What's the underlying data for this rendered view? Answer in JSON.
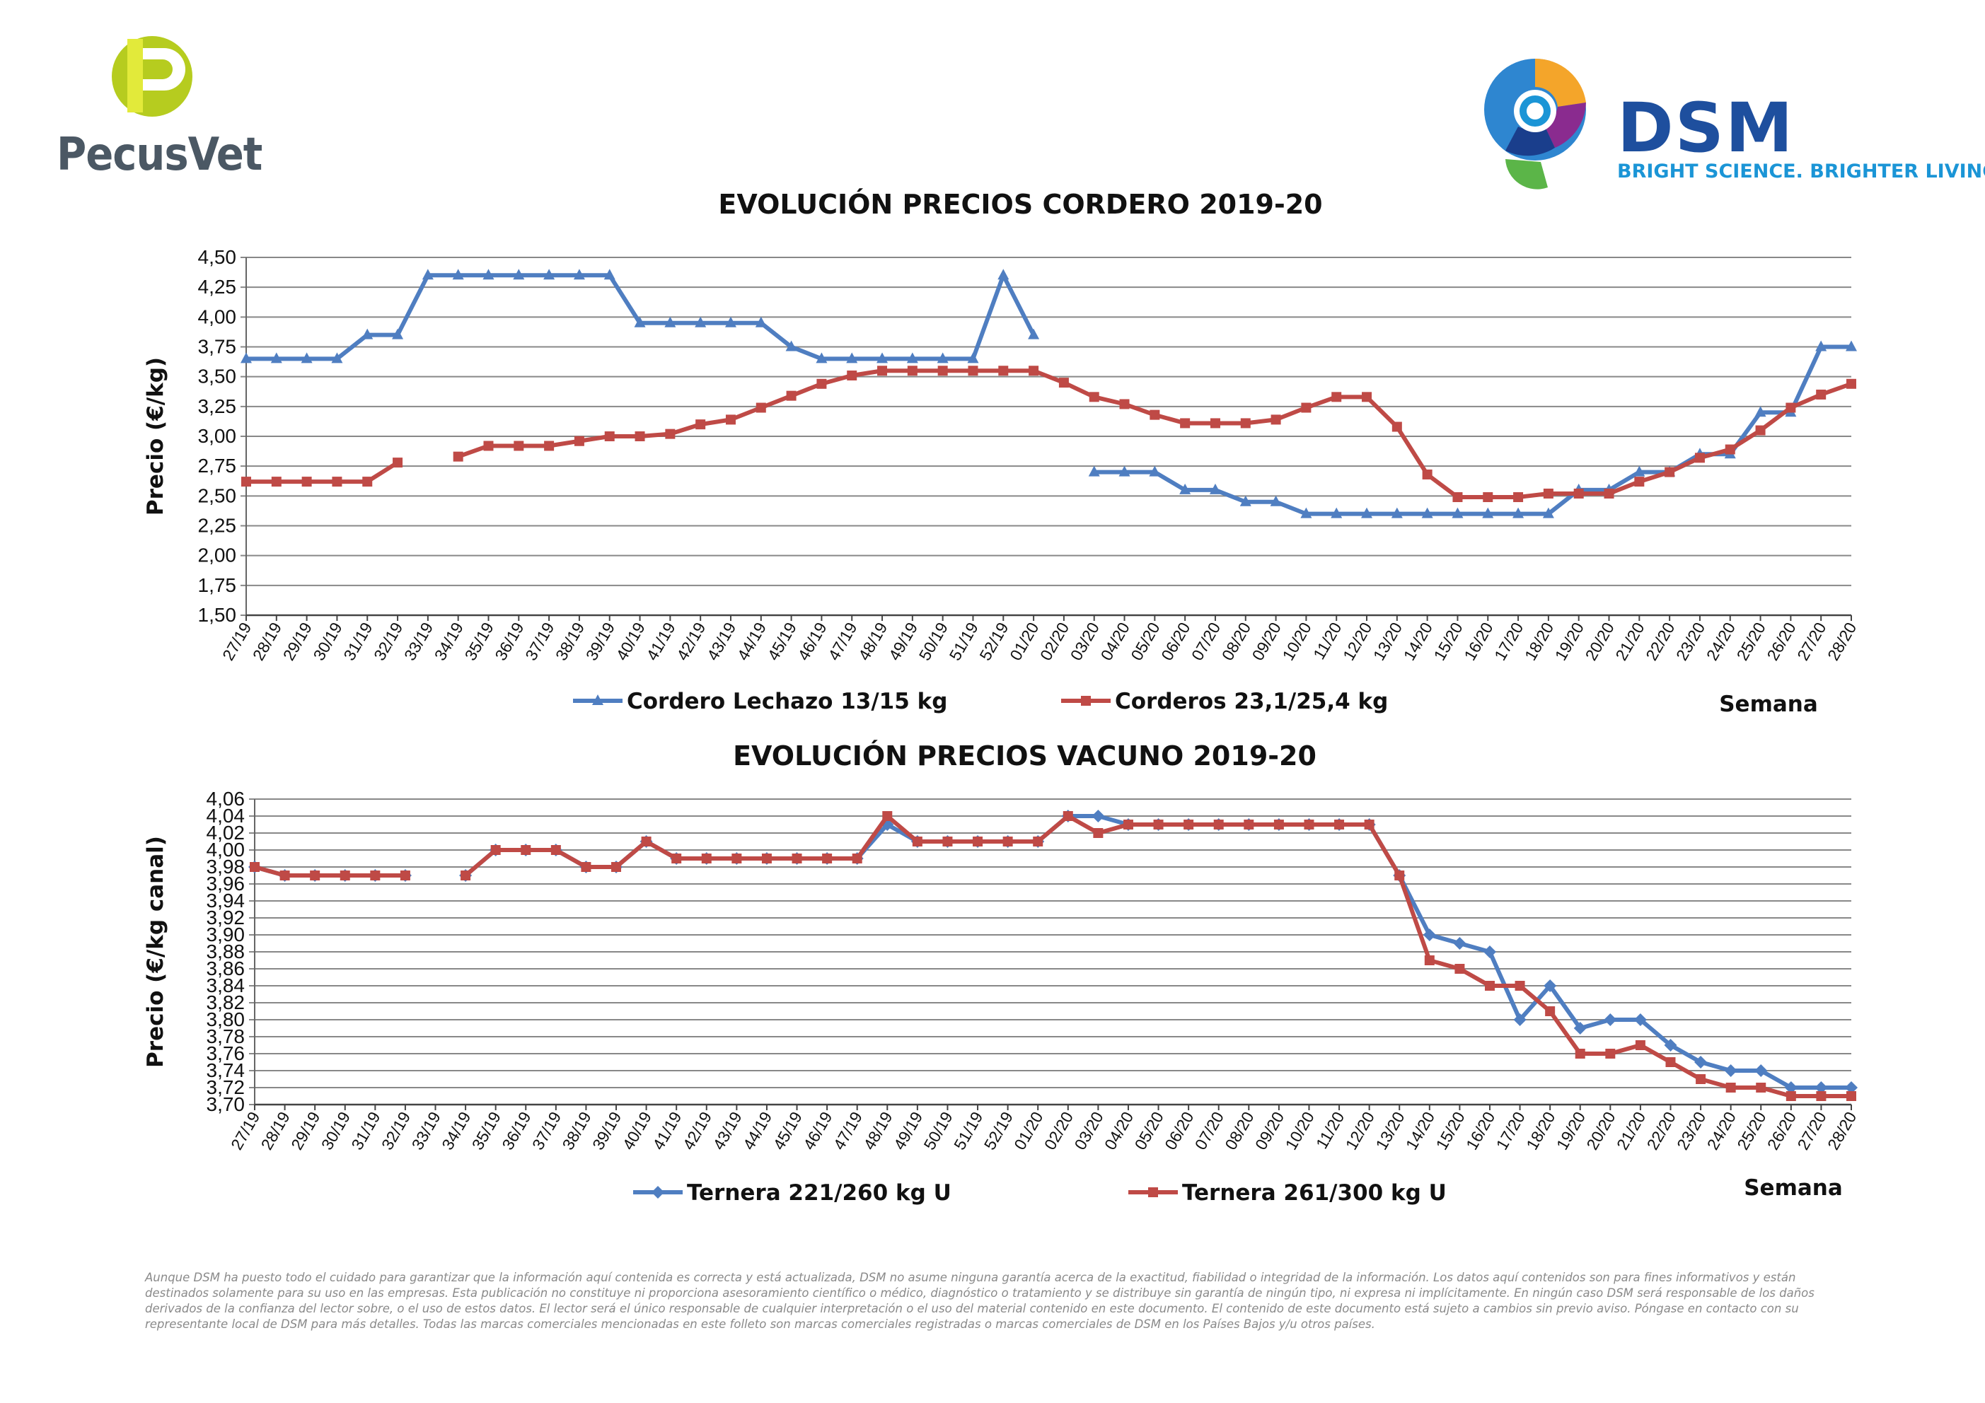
{
  "logos": {
    "pecusvet": "PecusVet",
    "dsm": "DSM",
    "dsm_tagline": "BRIGHT SCIENCE. BRIGHTER LIVING."
  },
  "colors": {
    "blue": "#4f7ec1",
    "red": "#bf4a46",
    "grid": "#888888"
  },
  "chart_data": [
    {
      "type": "line",
      "title": "EVOLUCIÓN PRECIOS CORDERO 2019-20",
      "ylabel": "Precio (€/kg)",
      "xlabel": "Semana",
      "ylim": [
        1.5,
        4.5
      ],
      "yticks": [
        "1,50",
        "1,75",
        "2,00",
        "2,25",
        "2,50",
        "2,75",
        "3,00",
        "3,25",
        "3,50",
        "3,75",
        "4,00",
        "4,25",
        "4,50"
      ],
      "grid": true,
      "legend_position": "bottom",
      "categories": [
        "27/19",
        "28/19",
        "29/19",
        "30/19",
        "31/19",
        "32/19",
        "33/19",
        "34/19",
        "35/19",
        "36/19",
        "37/19",
        "38/19",
        "39/19",
        "40/19",
        "41/19",
        "42/19",
        "43/19",
        "44/19",
        "45/19",
        "46/19",
        "47/19",
        "48/19",
        "49/19",
        "50/19",
        "51/19",
        "52/19",
        "01/20",
        "02/20",
        "03/20",
        "04/20",
        "05/20",
        "06/20",
        "07/20",
        "08/20",
        "09/20",
        "10/20",
        "11/20",
        "12/20",
        "13/20",
        "14/20",
        "15/20",
        "16/20",
        "17/20",
        "18/20",
        "19/20",
        "20/20",
        "21/20",
        "22/20",
        "23/20",
        "24/20",
        "25/20",
        "26/20",
        "27/20",
        "28/20"
      ],
      "series": [
        {
          "name": "Cordero Lechazo 13/15 kg",
          "marker": "triangle",
          "color": "#4f7ec1",
          "values": [
            3.65,
            3.65,
            3.65,
            3.65,
            3.85,
            3.85,
            4.35,
            4.35,
            4.35,
            4.35,
            4.35,
            4.35,
            4.35,
            3.95,
            3.95,
            3.95,
            3.95,
            3.95,
            3.75,
            3.65,
            3.65,
            3.65,
            3.65,
            3.65,
            3.65,
            4.35,
            3.85,
            null,
            2.7,
            2.7,
            2.7,
            2.55,
            2.55,
            2.45,
            2.45,
            2.35,
            2.35,
            2.35,
            2.35,
            2.35,
            2.35,
            2.35,
            2.35,
            2.35,
            2.55,
            2.55,
            2.7,
            2.7,
            2.85,
            2.85,
            3.2,
            3.2,
            3.75,
            3.75
          ]
        },
        {
          "name": "Corderos 23,1/25,4 kg",
          "marker": "square",
          "color": "#bf4a46",
          "values": [
            2.62,
            2.62,
            2.62,
            2.62,
            2.62,
            2.78,
            null,
            2.83,
            2.92,
            2.92,
            2.92,
            2.96,
            3.0,
            3.0,
            3.02,
            3.1,
            3.14,
            3.24,
            3.34,
            3.44,
            3.51,
            3.55,
            3.55,
            3.55,
            3.55,
            3.55,
            3.55,
            3.45,
            3.33,
            3.27,
            3.18,
            3.11,
            3.11,
            3.11,
            3.14,
            3.24,
            3.33,
            3.33,
            3.08,
            2.68,
            2.49,
            2.49,
            2.49,
            2.52,
            2.52,
            2.52,
            2.62,
            2.7,
            2.82,
            2.89,
            3.05,
            3.24,
            3.35,
            3.44
          ]
        }
      ]
    },
    {
      "type": "line",
      "title": "EVOLUCIÓN PRECIOS VACUNO 2019-20",
      "ylabel": "Precio (€/kg canal)",
      "xlabel": "Semana",
      "ylim": [
        3.7,
        4.06
      ],
      "yticks": [
        "3,70",
        "3,72",
        "3,74",
        "3,76",
        "3,78",
        "3,80",
        "3,82",
        "3,84",
        "3,86",
        "3,88",
        "3,90",
        "3,92",
        "3,94",
        "3,96",
        "3,98",
        "4,00",
        "4,02",
        "4,04",
        "4,06"
      ],
      "grid": true,
      "legend_position": "bottom",
      "categories": [
        "27/19",
        "28/19",
        "29/19",
        "30/19",
        "31/19",
        "32/19",
        "33/19",
        "34/19",
        "35/19",
        "36/19",
        "37/19",
        "38/19",
        "39/19",
        "40/19",
        "41/19",
        "42/19",
        "43/19",
        "44/19",
        "45/19",
        "46/19",
        "47/19",
        "48/19",
        "49/19",
        "50/19",
        "51/19",
        "52/19",
        "01/20",
        "02/20",
        "03/20",
        "04/20",
        "05/20",
        "06/20",
        "07/20",
        "08/20",
        "09/20",
        "10/20",
        "11/20",
        "12/20",
        "13/20",
        "14/20",
        "15/20",
        "16/20",
        "17/20",
        "18/20",
        "19/20",
        "20/20",
        "21/20",
        "22/20",
        "23/20",
        "24/20",
        "25/20",
        "26/20",
        "27/20",
        "28/20"
      ],
      "series": [
        {
          "name": "Ternera 221/260 kg U",
          "marker": "diamond",
          "color": "#4f7ec1",
          "values": [
            3.98,
            3.97,
            3.97,
            3.97,
            3.97,
            3.97,
            null,
            3.97,
            4.0,
            4.0,
            4.0,
            3.98,
            3.98,
            4.01,
            3.99,
            3.99,
            3.99,
            3.99,
            3.99,
            3.99,
            3.99,
            4.03,
            4.01,
            4.01,
            4.01,
            4.01,
            4.01,
            4.04,
            4.04,
            4.03,
            4.03,
            4.03,
            4.03,
            4.03,
            4.03,
            4.03,
            4.03,
            4.03,
            3.97,
            3.9,
            3.89,
            3.88,
            3.8,
            3.84,
            3.79,
            3.8,
            3.8,
            3.77,
            3.75,
            3.74,
            3.74,
            3.72,
            3.72,
            3.72
          ]
        },
        {
          "name": "Ternera 261/300 kg U",
          "marker": "square",
          "color": "#bf4a46",
          "values": [
            3.98,
            3.97,
            3.97,
            3.97,
            3.97,
            3.97,
            null,
            3.97,
            4.0,
            4.0,
            4.0,
            3.98,
            3.98,
            4.01,
            3.99,
            3.99,
            3.99,
            3.99,
            3.99,
            3.99,
            3.99,
            4.04,
            4.01,
            4.01,
            4.01,
            4.01,
            4.01,
            4.04,
            4.02,
            4.03,
            4.03,
            4.03,
            4.03,
            4.03,
            4.03,
            4.03,
            4.03,
            4.03,
            3.97,
            3.87,
            3.86,
            3.84,
            3.84,
            3.81,
            3.76,
            3.76,
            3.77,
            3.75,
            3.73,
            3.72,
            3.72,
            3.71,
            3.71,
            3.71
          ]
        }
      ]
    }
  ],
  "disclaimer": "Aunque DSM ha puesto todo el cuidado para garantizar que la información aquí contenida es correcta y está actualizada, DSM no asume ninguna garantía acerca de la exactitud, fiabilidad o integridad de la información. Los datos aquí contenidos son para fines informativos y están destinados solamente para su uso en las empresas. Esta publicación no constituye ni proporciona asesoramiento científico o médico, diagnóstico o tratamiento y se distribuye sin garantía de ningún tipo, ni expresa ni implícitamente. En ningún caso DSM será responsable de los daños derivados de la confianza del lector sobre, o el uso de estos datos. El lector será el único responsable de cualquier interpretación o el uso del material contenido en este documento. El contenido de este documento está sujeto a cambios sin previo aviso. Póngase en contacto con su representante local de DSM para más detalles. Todas las marcas comerciales mencionadas en este folleto son marcas comerciales registradas o marcas comerciales de DSM en los Países Bajos y/u otros países."
}
